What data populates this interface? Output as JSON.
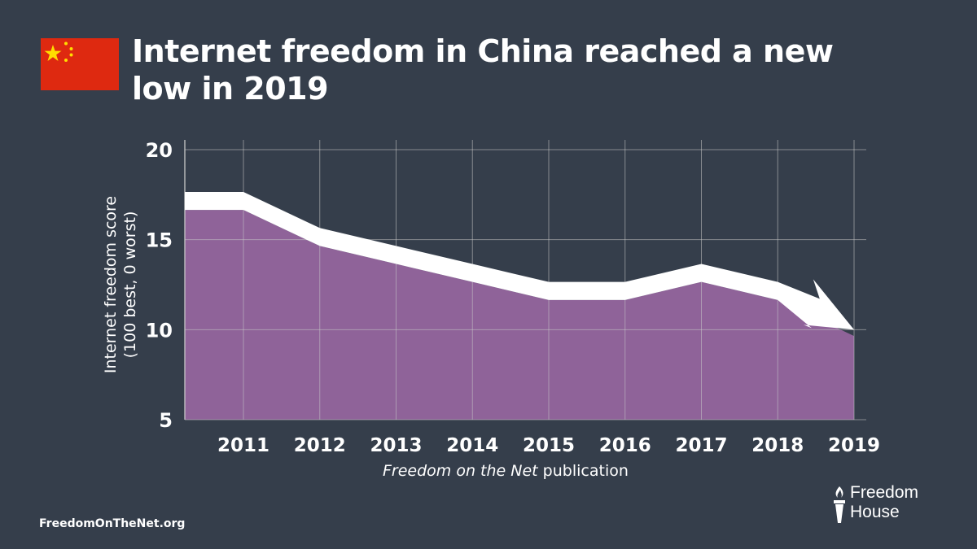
{
  "header": {
    "title": "Internet freedom in China reached a new low in 2019",
    "flag_icon": "china-flag-icon",
    "flag_colors": {
      "field": "#de2910",
      "stars": "#ffde00"
    }
  },
  "footer": {
    "url": "FreedomOnTheNet.org",
    "logo_line1": "Freedom",
    "logo_line2": "House",
    "logo_icon": "torch-icon"
  },
  "colors": {
    "background": "#353e4b",
    "area_fill": "#8f6399",
    "trend_arrow": "#ffffff",
    "grid": "#c8c8c8"
  },
  "chart_data": {
    "type": "area",
    "title": "Internet freedom in China reached a new low in 2019",
    "xlabel_italic": "Freedom on the Net",
    "xlabel_rest": " publication",
    "ylabel_line1": "Internet freedom score",
    "ylabel_line2": "(100 best, 0 worst)",
    "categories": [
      "2011",
      "2012",
      "2013",
      "2014",
      "2015",
      "2016",
      "2017",
      "2018",
      "2019"
    ],
    "values": [
      17,
      15,
      14,
      13,
      12,
      12,
      13,
      12,
      10
    ],
    "ylim": [
      5,
      20
    ],
    "yticks": [
      20,
      15,
      10,
      5
    ],
    "grid": true,
    "annotation": "downward trend arrow ending at 2019"
  }
}
